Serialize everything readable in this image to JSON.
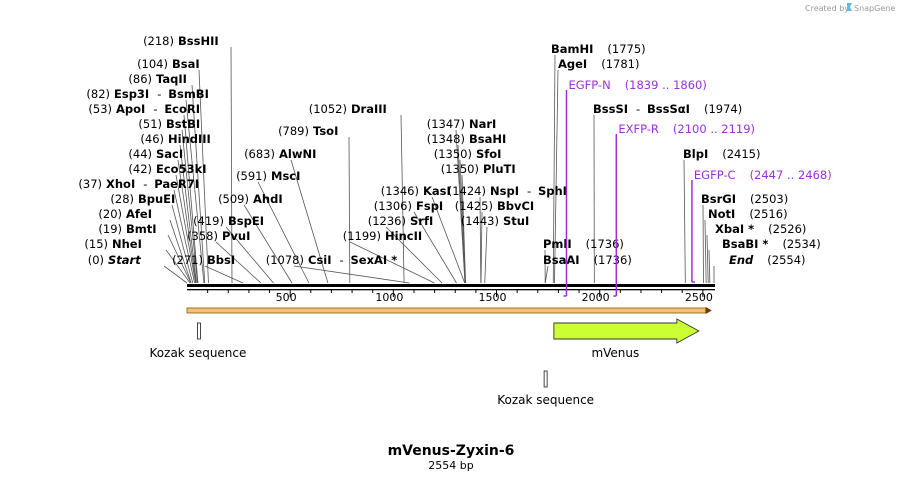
{
  "credit": "Created by",
  "brand": "SnapGene",
  "title": "mVenus-Zyxin-6",
  "subtitle": "2554 bp",
  "total_bp": 2554,
  "ticks": [
    500,
    1000,
    1500,
    2000,
    2500
  ],
  "sites": [
    {
      "pos": "(0)",
      "name": "Start",
      "italic": true,
      "bp": 0
    },
    {
      "pos": "(15)",
      "name": "NheI",
      "bp": 15
    },
    {
      "pos": "(19)",
      "name": "BmtI",
      "bp": 19
    },
    {
      "pos": "(20)",
      "name": "AfeI",
      "bp": 20
    },
    {
      "pos": "(28)",
      "name": "BpuEI",
      "bp": 28
    },
    {
      "pos": "(37)",
      "name": "XhoI",
      "extra": "PaeR7I",
      "bp": 37
    },
    {
      "pos": "(42)",
      "name": "Eco53kI",
      "bp": 42
    },
    {
      "pos": "(44)",
      "name": "SacI",
      "bp": 44
    },
    {
      "pos": "(46)",
      "name": "HindIII",
      "bp": 46
    },
    {
      "pos": "(51)",
      "name": "BstBI",
      "bp": 51
    },
    {
      "pos": "(53)",
      "name": "ApoI",
      "extra": "EcoRI",
      "bp": 53
    },
    {
      "pos": "(82)",
      "name": "Esp3I",
      "extra": "BsmBI",
      "bp": 82
    },
    {
      "pos": "(86)",
      "name": "TaqII",
      "bp": 86
    },
    {
      "pos": "(104)",
      "name": "BsaI",
      "bp": 104
    },
    {
      "pos": "(218)",
      "name": "BssHII",
      "bp": 218
    },
    {
      "pos": "(271)",
      "name": "BbsI",
      "bp": 271
    },
    {
      "pos": "(358)",
      "name": "PvuI",
      "bp": 358
    },
    {
      "pos": "(419)",
      "name": "BspEI",
      "bp": 419
    },
    {
      "pos": "(509)",
      "name": "AhdI",
      "bp": 509
    },
    {
      "pos": "(591)",
      "name": "MscI",
      "bp": 591
    },
    {
      "pos": "(683)",
      "name": "AlwNI",
      "bp": 683
    },
    {
      "pos": "(789)",
      "name": "TsoI",
      "bp": 789
    },
    {
      "pos": "(1052)",
      "name": "DraIII",
      "bp": 1052
    },
    {
      "pos": "(1078)",
      "name": "CsiI",
      "extra": "SexAI *",
      "bp": 1078
    },
    {
      "pos": "(1199)",
      "name": "HincII",
      "bp": 1199
    },
    {
      "pos": "(1236)",
      "name": "SrfI",
      "bp": 1236
    },
    {
      "pos": "(1306)",
      "name": "FspI",
      "bp": 1306
    },
    {
      "pos": "(1346)",
      "name": "KasI",
      "bp": 1346
    },
    {
      "pos": "(1347)",
      "name": "NarI",
      "bp": 1347
    },
    {
      "pos": "(1348)",
      "name": "BsaHI",
      "bp": 1348
    },
    {
      "pos": "(1350)",
      "name": "SfoI",
      "bp": 1350
    },
    {
      "pos": "(1350)",
      "name": "PluTI",
      "bp": 1350
    },
    {
      "pos": "(1424)",
      "name": "NspI",
      "extra": "SphI",
      "bp": 1424
    },
    {
      "pos": "(1425)",
      "name": "BbvCI",
      "bp": 1425
    },
    {
      "pos": "(1443)",
      "name": "StuI",
      "bp": 1443
    },
    {
      "pos": "(1736)",
      "name": "PmlI",
      "bp": 1736
    },
    {
      "pos": "(1736)",
      "name": "BsaAI",
      "bp": 1736
    },
    {
      "pos": "(1775)",
      "name": "BamHI",
      "bp": 1775
    },
    {
      "pos": "(1781)",
      "name": "AgeI",
      "bp": 1781
    },
    {
      "pos": "(1974)",
      "name": "BssSI",
      "extra": "BssSαI",
      "bp": 1974
    },
    {
      "pos": "(2415)",
      "name": "BlpI",
      "bp": 2415
    },
    {
      "pos": "(2503)",
      "name": "BsrGI",
      "bp": 2503
    },
    {
      "pos": "(2516)",
      "name": "NotI",
      "bp": 2516
    },
    {
      "pos": "(2526)",
      "name": "XbaI *",
      "bp": 2526
    },
    {
      "pos": "(2534)",
      "name": "BsaBI *",
      "bp": 2534
    },
    {
      "pos": "(2554)",
      "name": "End",
      "italic": true,
      "bp": 2554
    }
  ],
  "primers": [
    {
      "name": "EGFP-N",
      "range": "(1839 .. 1860)",
      "start": 1839,
      "end": 1860
    },
    {
      "name": "EXFP-R",
      "range": "(2100 .. 2119)",
      "start": 2100,
      "end": 2119
    },
    {
      "name": "EGFP-C",
      "range": "(2447 .. 2468)",
      "start": 2447,
      "end": 2468
    }
  ],
  "features": [
    {
      "name": "Kozak sequence",
      "start": 58,
      "end": 67
    },
    {
      "name": "mVenus",
      "start": 1778,
      "end": 2500
    },
    {
      "name": "Kozak sequence",
      "start": 1772,
      "end": 1781
    }
  ],
  "colors": {
    "primer": "#9b30d9",
    "venus_fill": "#ccff33",
    "orf_fill": "#f5c07a",
    "backbone": "#000000",
    "credit": "#9a9a9a"
  }
}
